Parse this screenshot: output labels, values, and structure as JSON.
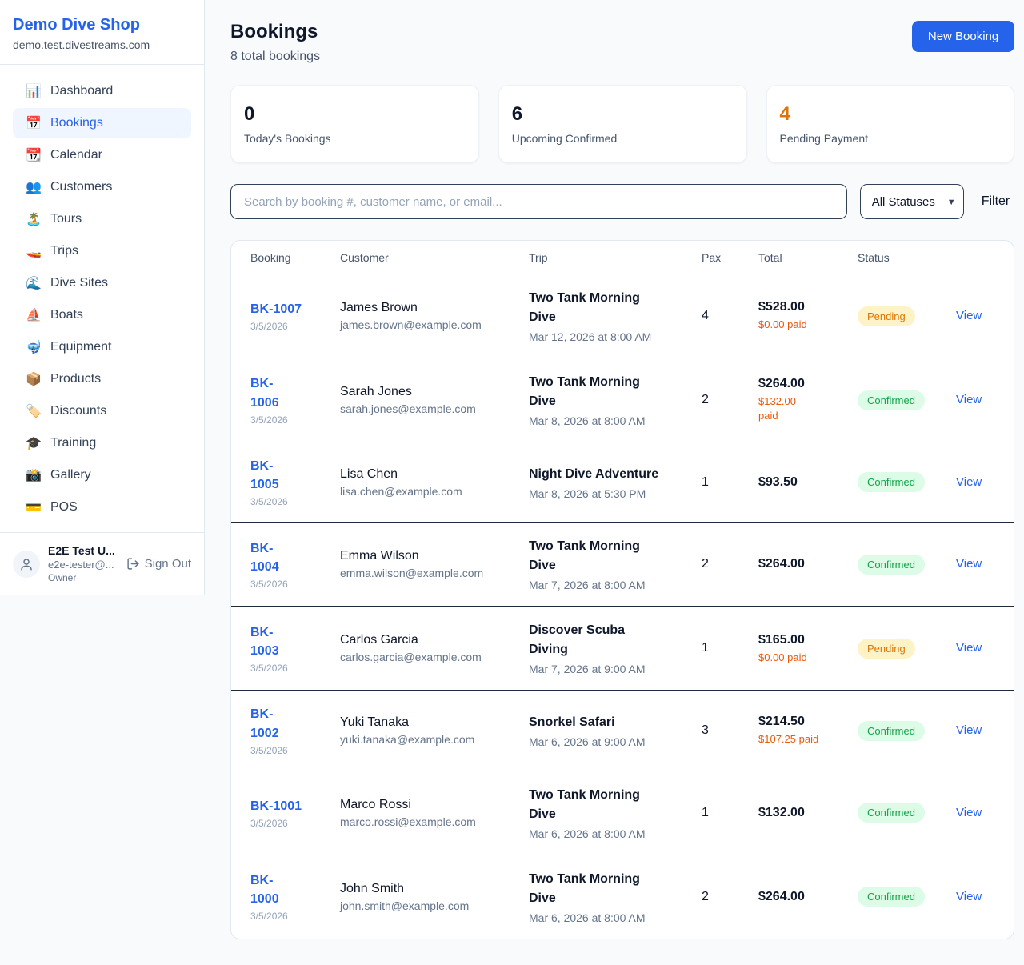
{
  "colors": {
    "accent": "#2563eb",
    "pending_text": "#d97706",
    "confirmed_text": "#16a34a",
    "paid_text": "#ea580c"
  },
  "brand": {
    "name": "Demo Dive Shop",
    "domain": "demo.test.divestreams.com"
  },
  "sidebar": {
    "items": [
      {
        "name": "dashboard",
        "icon": "bar-chart-icon",
        "glyph": "📊",
        "label": "Dashboard",
        "active": false
      },
      {
        "name": "bookings",
        "icon": "calendar-date-icon",
        "glyph": "📅",
        "label": "Bookings",
        "active": true
      },
      {
        "name": "calendar",
        "icon": "calendar-icon",
        "glyph": "📆",
        "label": "Calendar",
        "active": false
      },
      {
        "name": "customers",
        "icon": "people-icon",
        "glyph": "👥",
        "label": "Customers",
        "active": false
      },
      {
        "name": "tours",
        "icon": "island-icon",
        "glyph": "🏝️",
        "label": "Tours",
        "active": false
      },
      {
        "name": "trips",
        "icon": "speedboat-icon",
        "glyph": "🚤",
        "label": "Trips",
        "active": false
      },
      {
        "name": "dive-sites",
        "icon": "wave-icon",
        "glyph": "🌊",
        "label": "Dive Sites",
        "active": false
      },
      {
        "name": "boats",
        "icon": "sailboat-icon",
        "glyph": "⛵",
        "label": "Boats",
        "active": false
      },
      {
        "name": "equipment",
        "icon": "diving-mask-icon",
        "glyph": "🤿",
        "label": "Equipment",
        "active": false
      },
      {
        "name": "products",
        "icon": "package-icon",
        "glyph": "📦",
        "label": "Products",
        "active": false
      },
      {
        "name": "discounts",
        "icon": "tag-icon",
        "glyph": "🏷️",
        "label": "Discounts",
        "active": false
      },
      {
        "name": "training",
        "icon": "graduation-cap-icon",
        "glyph": "🎓",
        "label": "Training",
        "active": false
      },
      {
        "name": "gallery",
        "icon": "camera-icon",
        "glyph": "📸",
        "label": "Gallery",
        "active": false
      },
      {
        "name": "pos",
        "icon": "credit-card-icon",
        "glyph": "💳",
        "label": "POS",
        "active": false
      }
    ]
  },
  "user": {
    "name": "E2E Test U...",
    "email": "e2e-tester@...",
    "role": "Owner",
    "sign_out_label": "Sign Out"
  },
  "header": {
    "title": "Bookings",
    "subtitle": "8 total bookings",
    "new_booking_label": "New Booking"
  },
  "stats": [
    {
      "value": "0",
      "label": "Today's Bookings",
      "accent": false
    },
    {
      "value": "6",
      "label": "Upcoming Confirmed",
      "accent": false
    },
    {
      "value": "4",
      "label": "Pending Payment",
      "accent": true
    }
  ],
  "filters": {
    "search_placeholder": "Search by booking #, customer name, or email...",
    "status_value": "All Statuses",
    "filter_label": "Filter"
  },
  "table": {
    "columns": [
      "Booking",
      "Customer",
      "Trip",
      "Pax",
      "Total",
      "Status"
    ],
    "view_label": "View",
    "rows": [
      {
        "id": "BK-1007",
        "id_wrap": false,
        "date": "3/5/2026",
        "customer": "James Brown",
        "email": "james.brown@example.com",
        "trip": "Two Tank Morning Dive",
        "trip_date": "Mar 12, 2026 at 8:00 AM",
        "pax": "4",
        "total": "$528.00",
        "paid": "$0.00 paid",
        "paid_wrap": false,
        "status": "Pending"
      },
      {
        "id": "BK-1006",
        "id_wrap": true,
        "date": "3/5/2026",
        "customer": "Sarah Jones",
        "email": "sarah.jones@example.com",
        "trip": "Two Tank Morning Dive",
        "trip_date": "Mar 8, 2026 at 8:00 AM",
        "pax": "2",
        "total": "$264.00",
        "paid": "$132.00 paid",
        "paid_wrap": true,
        "status": "Confirmed"
      },
      {
        "id": "BK-1005",
        "id_wrap": true,
        "date": "3/5/2026",
        "customer": "Lisa Chen",
        "email": "lisa.chen@example.com",
        "trip": "Night Dive Adventure",
        "trip_date": "Mar 8, 2026 at 5:30 PM",
        "pax": "1",
        "total": "$93.50",
        "paid": null,
        "paid_wrap": false,
        "status": "Confirmed"
      },
      {
        "id": "BK-1004",
        "id_wrap": true,
        "date": "3/5/2026",
        "customer": "Emma Wilson",
        "email": "emma.wilson@example.com",
        "trip": "Two Tank Morning Dive",
        "trip_date": "Mar 7, 2026 at 8:00 AM",
        "pax": "2",
        "total": "$264.00",
        "paid": null,
        "paid_wrap": false,
        "status": "Confirmed"
      },
      {
        "id": "BK-1003",
        "id_wrap": true,
        "date": "3/5/2026",
        "customer": "Carlos Garcia",
        "email": "carlos.garcia@example.com",
        "trip": "Discover Scuba Diving",
        "trip_date": "Mar 7, 2026 at 9:00 AM",
        "pax": "1",
        "total": "$165.00",
        "paid": "$0.00 paid",
        "paid_wrap": false,
        "status": "Pending"
      },
      {
        "id": "BK-1002",
        "id_wrap": true,
        "date": "3/5/2026",
        "customer": "Yuki Tanaka",
        "email": "yuki.tanaka@example.com",
        "trip": "Snorkel Safari",
        "trip_date": "Mar 6, 2026 at 9:00 AM",
        "pax": "3",
        "total": "$214.50",
        "paid": "$107.25 paid",
        "paid_wrap": false,
        "status": "Confirmed"
      },
      {
        "id": "BK-1001",
        "id_wrap": false,
        "date": "3/5/2026",
        "customer": "Marco Rossi",
        "email": "marco.rossi@example.com",
        "trip": "Two Tank Morning Dive",
        "trip_date": "Mar 6, 2026 at 8:00 AM",
        "pax": "1",
        "total": "$132.00",
        "paid": null,
        "paid_wrap": false,
        "status": "Confirmed"
      },
      {
        "id": "BK-1000",
        "id_wrap": true,
        "date": "3/5/2026",
        "customer": "John Smith",
        "email": "john.smith@example.com",
        "trip": "Two Tank Morning Dive",
        "trip_date": "Mar 6, 2026 at 8:00 AM",
        "pax": "2",
        "total": "$264.00",
        "paid": null,
        "paid_wrap": false,
        "status": "Confirmed"
      }
    ]
  }
}
